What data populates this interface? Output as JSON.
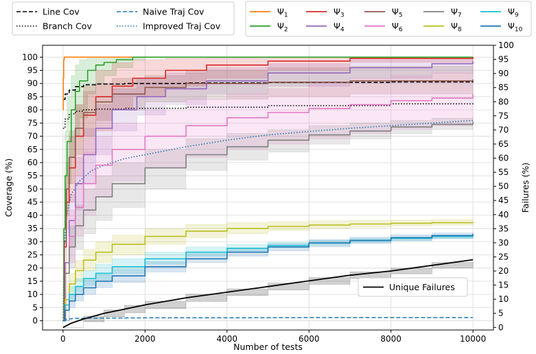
{
  "chart_data": {
    "type": "line",
    "xlabel": "Number of tests",
    "ylabel": "Coverage (%)",
    "y2label": "Failures (%)",
    "xlim": [
      -500,
      10500
    ],
    "ylim": [
      -3.5,
      104.5
    ],
    "y2lim": [
      -0.9,
      100.0
    ],
    "xticks": [
      0,
      2000,
      4000,
      6000,
      8000,
      10000
    ],
    "yticks": [
      0,
      5,
      10,
      15,
      20,
      25,
      30,
      35,
      40,
      45,
      50,
      55,
      60,
      65,
      70,
      75,
      80,
      85,
      90,
      95,
      100
    ],
    "y2ticks": [
      0,
      5,
      10,
      15,
      20,
      25,
      30,
      35,
      40,
      45,
      50,
      55,
      60,
      65,
      70,
      75,
      80,
      85,
      90,
      95,
      100
    ],
    "grid": true,
    "legend_top_left": [
      {
        "label": "Line Cov",
        "color": "#000000",
        "dash": "6,3"
      },
      {
        "label": "Naive Traj Cov",
        "color": "#1f77b4",
        "dash": "6,3"
      },
      {
        "label": "Branch Cov",
        "color": "#000000",
        "dash": "1.5,2.5"
      },
      {
        "label": "Improved Traj Cov",
        "color": "#1f77b4",
        "dash": "1.5,2.5"
      }
    ],
    "legend_top_right": [
      {
        "sym": "Ψ",
        "sub": "1",
        "color": "#ff7f0e"
      },
      {
        "sym": "Ψ",
        "sub": "2",
        "color": "#2ca02c"
      },
      {
        "sym": "Ψ",
        "sub": "3",
        "color": "#d62728"
      },
      {
        "sym": "Ψ",
        "sub": "4",
        "color": "#9467bd"
      },
      {
        "sym": "Ψ",
        "sub": "5",
        "color": "#8c564b"
      },
      {
        "sym": "Ψ",
        "sub": "6",
        "color": "#e377c2"
      },
      {
        "sym": "Ψ",
        "sub": "7",
        "color": "#7f7f7f"
      },
      {
        "sym": "Ψ",
        "sub": "8",
        "color": "#bcbd22"
      },
      {
        "sym": "Ψ",
        "sub": "9",
        "color": "#17becf"
      },
      {
        "sym": "Ψ",
        "sub": "10",
        "color": "#1f77b4"
      }
    ],
    "legend_failures": {
      "label": "Unique Failures",
      "color": "#000000"
    },
    "series": [
      {
        "name": "Line Cov",
        "color": "#000000",
        "dash": "6,3",
        "width": 1.6,
        "x": [
          0,
          50,
          150,
          300,
          500,
          800,
          1500,
          3000,
          5000,
          8000,
          10000
        ],
        "y": [
          84,
          86,
          87.5,
          88.8,
          89.5,
          89.8,
          90.0,
          90.2,
          90.4,
          90.6,
          90.8
        ]
      },
      {
        "name": "Branch Cov",
        "color": "#000000",
        "dash": "1.5,2.5",
        "width": 1.6,
        "x": [
          0,
          50,
          150,
          300,
          500,
          800,
          1500,
          3000,
          5000,
          8000,
          10000
        ],
        "y": [
          73,
          76.5,
          78.5,
          79.5,
          80.0,
          80.3,
          80.6,
          81.0,
          81.6,
          82.3,
          83.0
        ]
      },
      {
        "name": "Naive Traj Cov",
        "color": "#1f77b4",
        "dash": "6,3",
        "width": 1.5,
        "x": [
          0,
          100,
          300,
          800,
          2000,
          4000,
          6000,
          8000,
          10000
        ],
        "y": [
          0.0,
          0.6,
          0.9,
          1.0,
          1.1,
          1.1,
          1.2,
          1.2,
          1.2
        ]
      },
      {
        "name": "Improved Traj Cov",
        "color": "#1f77b4",
        "dash": "1.5,2.5",
        "width": 1.6,
        "x": [
          0,
          25,
          50,
          100,
          200,
          400,
          700,
          1000,
          1500,
          2000,
          3000,
          4000,
          5000,
          6000,
          7000,
          8000,
          9000,
          10000
        ],
        "y": [
          0,
          25,
          33,
          41,
          48,
          53,
          57,
          59,
          61.5,
          63,
          66,
          68.5,
          70.5,
          71.8,
          73,
          74,
          75,
          76
        ]
      },
      {
        "name": "Ψ1",
        "color": "#ff7f0e",
        "width": 1.6,
        "x": [
          0,
          5,
          15,
          30,
          10000
        ],
        "y": [
          80,
          92,
          99,
          100,
          100
        ]
      },
      {
        "name": "Ψ2",
        "color": "#2ca02c",
        "width": 1.6,
        "x": [
          0,
          20,
          50,
          100,
          200,
          300,
          400,
          600,
          800,
          1000,
          1300,
          1700,
          2000,
          10000
        ],
        "y": [
          0,
          35,
          55,
          68,
          80,
          87,
          91,
          95,
          97,
          98,
          99,
          100,
          100,
          100
        ]
      },
      {
        "name": "Ψ3",
        "color": "#d62728",
        "width": 1.6,
        "x": [
          0,
          30,
          80,
          150,
          300,
          500,
          800,
          1200,
          1700,
          2500,
          3500,
          5000,
          7000,
          10000
        ],
        "y": [
          0,
          28,
          45,
          58,
          70,
          78,
          85,
          89,
          92,
          95,
          97,
          98.5,
          99.5,
          100
        ]
      },
      {
        "name": "Ψ4",
        "color": "#9467bd",
        "width": 1.6,
        "x": [
          0,
          50,
          150,
          300,
          500,
          800,
          1200,
          1800,
          2500,
          3500,
          5000,
          7000,
          9000,
          10000
        ],
        "y": [
          0,
          22,
          38,
          52,
          63,
          73,
          80,
          85,
          88,
          91,
          94,
          96,
          97.5,
          98.5
        ]
      },
      {
        "name": "Ψ5",
        "color": "#8c564b",
        "width": 1.6,
        "x": [
          0,
          30,
          80,
          150,
          300,
          500,
          800,
          1200,
          2000,
          3000,
          5000,
          7000,
          10000
        ],
        "y": [
          0,
          30,
          50,
          62,
          73,
          79,
          83,
          86,
          88.5,
          90,
          90.5,
          91,
          91.5
        ]
      },
      {
        "name": "Ψ6",
        "color": "#e377c2",
        "width": 1.6,
        "x": [
          0,
          50,
          150,
          300,
          500,
          800,
          1200,
          2000,
          3000,
          4000,
          5000,
          6000,
          7000,
          8000,
          9000,
          10000
        ],
        "y": [
          0,
          18,
          32,
          43,
          52,
          59,
          65,
          70,
          74,
          77,
          79,
          80.5,
          82,
          83.5,
          84.5,
          86
        ]
      },
      {
        "name": "Ψ7",
        "color": "#7f7f7f",
        "width": 1.6,
        "x": [
          0,
          50,
          150,
          300,
          500,
          800,
          1200,
          2000,
          3000,
          4000,
          5000,
          6000,
          7000,
          8000,
          9000,
          10000
        ],
        "y": [
          0,
          18,
          28,
          36,
          42,
          47,
          52,
          58,
          63,
          66,
          68.5,
          70.5,
          72,
          73.5,
          74.5,
          75.5
        ]
      },
      {
        "name": "Ψ8",
        "color": "#bcbd22",
        "width": 1.6,
        "x": [
          0,
          50,
          150,
          300,
          500,
          800,
          1200,
          2000,
          3000,
          4000,
          5000,
          6000,
          7000,
          8000,
          9000,
          10000
        ],
        "y": [
          0,
          8,
          14,
          19,
          23,
          26,
          29,
          32,
          34,
          35,
          35.8,
          36.3,
          36.7,
          37,
          37.2,
          37.4
        ]
      },
      {
        "name": "Ψ9",
        "color": "#17becf",
        "width": 1.6,
        "x": [
          0,
          50,
          150,
          300,
          500,
          800,
          1200,
          2000,
          3000,
          4000,
          5000,
          6000,
          7000,
          8000,
          9000,
          10000
        ],
        "y": [
          0,
          6,
          10,
          13,
          16,
          18,
          20.5,
          23.5,
          26,
          27.5,
          28.5,
          29.5,
          30.5,
          31.3,
          32,
          32.5
        ]
      },
      {
        "name": "Ψ10",
        "color": "#1f77b4",
        "width": 1.6,
        "x": [
          0,
          50,
          150,
          300,
          500,
          800,
          1200,
          2000,
          3000,
          4000,
          5000,
          6000,
          7000,
          8000,
          9000,
          10000
        ],
        "y": [
          0,
          4,
          7.5,
          10,
          12.5,
          15,
          17,
          20.5,
          23.5,
          26,
          28,
          29.5,
          30.5,
          31.5,
          32.3,
          33
        ]
      },
      {
        "name": "Unique Failures",
        "color": "#000000",
        "width": 1.8,
        "axis": "y2",
        "x": [
          0,
          200,
          500,
          1000,
          1500,
          2000,
          3000,
          4000,
          5000,
          6000,
          7000,
          8000,
          9000,
          10000
        ],
        "y": [
          0,
          1.5,
          3.0,
          5.0,
          6.5,
          8.0,
          10.5,
          12.5,
          14.5,
          16.5,
          18.5,
          20.0,
          22.0,
          24.0
        ]
      }
    ],
    "bands": [
      {
        "series": "Ψ2",
        "color": "#2ca02c",
        "x": [
          0,
          50,
          100,
          200,
          300,
          400,
          600,
          800,
          1000,
          1300,
          1700,
          2000,
          10000
        ],
        "lo": [
          0,
          40,
          52,
          62,
          70,
          77,
          86,
          90,
          93,
          96,
          99,
          100,
          100
        ],
        "hi": [
          0,
          72,
          85,
          93,
          97,
          99,
          100,
          100,
          100,
          100,
          100,
          100,
          100
        ]
      },
      {
        "series": "Ψ3",
        "color": "#d62728",
        "x": [
          0,
          80,
          150,
          300,
          500,
          800,
          1200,
          1700,
          2500,
          3500,
          5000,
          7000,
          10000
        ],
        "lo": [
          0,
          35,
          45,
          55,
          63,
          72,
          80,
          85,
          89,
          92,
          95,
          98,
          99.5
        ],
        "hi": [
          0,
          55,
          70,
          82,
          89,
          95,
          98,
          99,
          99.5,
          100,
          100,
          100,
          100
        ]
      },
      {
        "series": "Ψ4",
        "color": "#9467bd",
        "x": [
          0,
          150,
          300,
          500,
          800,
          1200,
          1800,
          2500,
          3500,
          5000,
          7000,
          9000,
          10000
        ],
        "lo": [
          0,
          28,
          42,
          52,
          63,
          72,
          78,
          82,
          86,
          89,
          92,
          94,
          95
        ],
        "hi": [
          0,
          48,
          62,
          73,
          82,
          88,
          92,
          94,
          96,
          97.5,
          99,
          99.5,
          100
        ]
      },
      {
        "series": "Ψ5",
        "color": "#8c564b",
        "x": [
          0,
          80,
          150,
          300,
          500,
          800,
          1200,
          2000,
          3000,
          5000,
          7000,
          10000
        ],
        "lo": [
          0,
          40,
          52,
          63,
          70,
          76,
          80,
          83,
          84,
          85,
          86,
          86.5
        ],
        "hi": [
          0,
          60,
          72,
          82,
          87,
          90,
          92,
          93,
          95,
          96,
          96.5,
          97
        ]
      },
      {
        "series": "Ψ6",
        "color": "#e377c2",
        "x": [
          0,
          150,
          300,
          500,
          800,
          1200,
          2000,
          3000,
          4000,
          5000,
          6000,
          7000,
          8000,
          9000,
          10000
        ],
        "lo": [
          0,
          22,
          32,
          40,
          47,
          53,
          58,
          62,
          65,
          67,
          69,
          71,
          72.5,
          74,
          75
        ],
        "hi": [
          0,
          42,
          55,
          64,
          70,
          75,
          80,
          84,
          86,
          88,
          90,
          92,
          93,
          94,
          95
        ]
      },
      {
        "series": "Ψ7",
        "color": "#7f7f7f",
        "x": [
          0,
          150,
          300,
          500,
          800,
          1200,
          2000,
          3000,
          4000,
          5000,
          6000,
          7000,
          8000,
          9000,
          10000
        ],
        "lo": [
          0,
          20,
          27,
          33,
          38,
          43,
          50,
          57,
          61,
          64,
          67,
          69,
          71,
          72.5,
          73.5
        ],
        "hi": [
          0,
          36,
          44,
          50,
          55,
          60,
          65,
          69,
          71,
          72.5,
          74,
          75,
          76,
          76.8,
          77.5
        ]
      },
      {
        "series": "Ψ8",
        "color": "#bcbd22",
        "x": [
          0,
          150,
          300,
          500,
          800,
          1200,
          2000,
          3000,
          4000,
          5000,
          6000,
          7000,
          8000,
          9000,
          10000
        ],
        "lo": [
          0,
          11,
          15,
          19,
          22,
          25,
          29,
          31.5,
          33,
          34.2,
          35,
          35.6,
          36,
          36.3,
          36.6
        ],
        "hi": [
          0,
          18,
          23,
          27,
          30,
          32.5,
          35,
          36.5,
          37.2,
          37.6,
          37.9,
          38.1,
          38.2,
          38.3,
          38.4
        ]
      },
      {
        "series": "Ψ9",
        "color": "#17becf",
        "x": [
          0,
          150,
          300,
          500,
          800,
          1200,
          2000,
          3000,
          4000,
          5000,
          6000,
          7000,
          8000,
          9000,
          10000
        ],
        "lo": [
          0,
          8,
          11,
          13.5,
          15.5,
          18,
          21.5,
          24.5,
          26.5,
          27.7,
          28.7,
          29.7,
          30.5,
          31.2,
          31.8
        ],
        "hi": [
          0,
          13,
          16,
          19,
          21.5,
          23.5,
          26,
          28,
          29,
          29.8,
          30.5,
          31.2,
          31.9,
          32.5,
          33
        ]
      },
      {
        "series": "Ψ10",
        "color": "#1f77b4",
        "x": [
          0,
          150,
          300,
          500,
          800,
          1200,
          2000,
          3000,
          4000,
          5000,
          6000,
          7000,
          8000,
          9000,
          10000
        ],
        "lo": [
          0,
          5,
          7.5,
          10,
          12.5,
          14.5,
          18.5,
          22,
          24.5,
          26.5,
          28,
          29.3,
          30.3,
          31.2,
          32
        ],
        "hi": [
          0,
          10,
          13,
          15.5,
          17.5,
          19.5,
          22.5,
          25.5,
          27.5,
          29.3,
          30.8,
          31.7,
          32.6,
          33.3,
          34
        ]
      },
      {
        "series": "Unique Failures",
        "color": "#000000",
        "axis": "y2",
        "x": [
          0,
          500,
          1000,
          1500,
          2000,
          3000,
          4000,
          5000,
          6000,
          7000,
          8000,
          9000,
          10000
        ],
        "lo": [
          0,
          2.0,
          3.8,
          5.2,
          6.7,
          9.2,
          11.3,
          13.3,
          15.3,
          17.3,
          19.0,
          21.0,
          23.3
        ],
        "hi": [
          0,
          4.0,
          6.2,
          7.8,
          9.3,
          11.8,
          13.7,
          15.7,
          17.7,
          19.7,
          21.0,
          23.0,
          24.7
        ]
      }
    ]
  }
}
